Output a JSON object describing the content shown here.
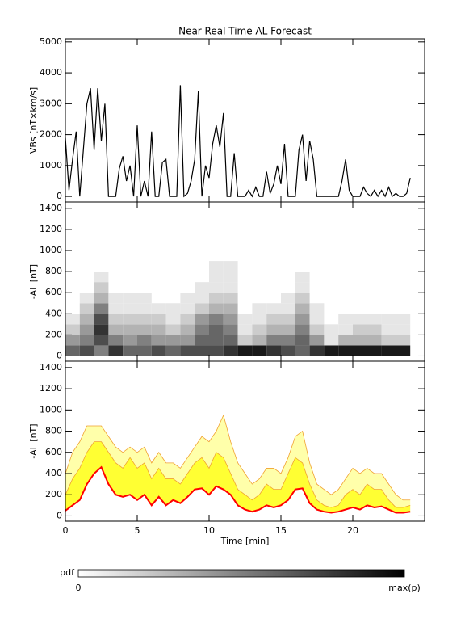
{
  "chart_data": [
    {
      "type": "line",
      "title": "Near Real Time AL Forecast",
      "ylabel": "VBs [nT×km/s]",
      "color": "#000000",
      "x": [
        0,
        0.25,
        0.5,
        0.75,
        1,
        1.25,
        1.5,
        1.75,
        2,
        2.25,
        2.5,
        2.75,
        3,
        3.25,
        3.5,
        3.75,
        4,
        4.25,
        4.5,
        4.75,
        5,
        5.25,
        5.5,
        5.75,
        6,
        6.25,
        6.5,
        6.75,
        7,
        7.25,
        7.5,
        7.75,
        8,
        8.25,
        8.5,
        8.75,
        9,
        9.25,
        9.5,
        9.75,
        10,
        10.25,
        10.5,
        10.75,
        11,
        11.25,
        11.5,
        11.75,
        12,
        12.25,
        12.5,
        12.75,
        13,
        13.25,
        13.5,
        13.75,
        14,
        14.25,
        14.5,
        14.75,
        15,
        15.25,
        15.5,
        15.75,
        16,
        16.25,
        16.5,
        16.75,
        17,
        17.25,
        17.5,
        17.75,
        18,
        18.25,
        18.5,
        18.75,
        19,
        19.25,
        19.5,
        19.75,
        20,
        20.25,
        20.5,
        20.75,
        21,
        21.25,
        21.5,
        21.75,
        22,
        22.25,
        22.5,
        22.75,
        23,
        23.25,
        23.5,
        23.75,
        24
      ],
      "values": [
        1900,
        200,
        1200,
        2100,
        0,
        1500,
        3000,
        3500,
        1500,
        3500,
        1800,
        3000,
        0,
        0,
        0,
        900,
        1300,
        500,
        1000,
        0,
        2300,
        0,
        500,
        0,
        2100,
        0,
        0,
        1100,
        1200,
        0,
        0,
        0,
        3600,
        0,
        100,
        500,
        1200,
        3400,
        0,
        1000,
        600,
        1700,
        2300,
        1600,
        2700,
        0,
        0,
        1400,
        0,
        0,
        0,
        200,
        0,
        300,
        0,
        0,
        800,
        100,
        400,
        1000,
        400,
        1700,
        0,
        0,
        0,
        1500,
        2000,
        500,
        1800,
        1200,
        0,
        0,
        0,
        0,
        0,
        0,
        0,
        500,
        1200,
        200,
        0,
        0,
        0,
        300,
        100,
        0,
        200,
        0,
        200,
        0,
        300,
        0,
        100,
        0,
        0,
        100,
        600
      ],
      "xlim": [
        0,
        25
      ],
      "xticks": [
        0,
        5,
        10,
        15,
        20
      ],
      "ylim": [
        -180,
        5100
      ],
      "yticks": [
        0,
        1000,
        2000,
        3000,
        4000,
        5000
      ]
    },
    {
      "type": "heatmap",
      "ylabel": "-AL [nT]",
      "x_bins": [
        0,
        1,
        2,
        3,
        4,
        5,
        6,
        7,
        8,
        9,
        10,
        11,
        12,
        13,
        14,
        15,
        16,
        17,
        18,
        19,
        20,
        21,
        22,
        23,
        24
      ],
      "y_bins": [
        0,
        100,
        200,
        300,
        400,
        500,
        600,
        700,
        800,
        900
      ],
      "values": [
        [
          0.6,
          0.4,
          0.2,
          0.1,
          0,
          0,
          0,
          0,
          0
        ],
        [
          0.7,
          0.5,
          0.4,
          0.3,
          0.2,
          0.1,
          0,
          0,
          0
        ],
        [
          0.5,
          0.7,
          0.8,
          0.7,
          0.5,
          0.3,
          0.2,
          0.1,
          0
        ],
        [
          0.8,
          0.5,
          0.3,
          0.2,
          0.1,
          0.1,
          0,
          0,
          0
        ],
        [
          0.6,
          0.4,
          0.3,
          0.2,
          0.1,
          0.1,
          0,
          0,
          0
        ],
        [
          0.6,
          0.5,
          0.3,
          0.2,
          0.1,
          0.1,
          0,
          0,
          0
        ],
        [
          0.7,
          0.4,
          0.3,
          0.2,
          0.1,
          0,
          0,
          0,
          0
        ],
        [
          0.6,
          0.4,
          0.2,
          0.1,
          0.1,
          0,
          0,
          0,
          0
        ],
        [
          0.7,
          0.4,
          0.3,
          0.2,
          0.1,
          0.1,
          0,
          0,
          0
        ],
        [
          0.7,
          0.6,
          0.5,
          0.4,
          0.2,
          0.1,
          0.1,
          0,
          0
        ],
        [
          0.7,
          0.6,
          0.6,
          0.5,
          0.3,
          0.2,
          0.1,
          0.1,
          0.1
        ],
        [
          0.8,
          0.6,
          0.5,
          0.4,
          0.3,
          0.2,
          0.1,
          0.1,
          0.1
        ],
        [
          0.9,
          0.2,
          0.1,
          0.1,
          0,
          0,
          0,
          0,
          0
        ],
        [
          0.9,
          0.3,
          0.2,
          0.1,
          0.1,
          0,
          0,
          0,
          0
        ],
        [
          0.8,
          0.5,
          0.3,
          0.2,
          0.1,
          0,
          0,
          0,
          0
        ],
        [
          0.7,
          0.5,
          0.3,
          0.2,
          0.1,
          0.1,
          0,
          0,
          0
        ],
        [
          0.6,
          0.6,
          0.5,
          0.4,
          0.3,
          0.2,
          0.1,
          0.1,
          0
        ],
        [
          0.8,
          0.4,
          0.2,
          0.1,
          0.1,
          0,
          0,
          0,
          0
        ],
        [
          0.9,
          0.1,
          0.1,
          0,
          0,
          0,
          0,
          0,
          0
        ],
        [
          0.9,
          0.3,
          0.1,
          0.1,
          0,
          0,
          0,
          0,
          0
        ],
        [
          0.9,
          0.3,
          0.2,
          0.1,
          0,
          0,
          0,
          0,
          0
        ],
        [
          0.9,
          0.3,
          0.2,
          0.1,
          0,
          0,
          0,
          0,
          0
        ],
        [
          0.9,
          0.2,
          0.1,
          0.1,
          0,
          0,
          0,
          0,
          0
        ],
        [
          0.9,
          0.2,
          0.1,
          0.1,
          0,
          0,
          0,
          0,
          0
        ]
      ],
      "xlim": [
        0,
        25
      ],
      "xticks": [
        0,
        5,
        10,
        15,
        20
      ],
      "ylim": [
        -50,
        1460
      ],
      "yticks": [
        0,
        200,
        400,
        600,
        800,
        1000,
        1200,
        1400
      ]
    },
    {
      "type": "band",
      "ylabel": "-AL [nT]",
      "xlabel": "Time [min]",
      "color": "#ff0000",
      "band_color": "#ffff33",
      "outer_color": "#ffffaa",
      "edge_color": "#f0a030",
      "x": [
        0,
        0.5,
        1,
        1.5,
        2,
        2.5,
        3,
        3.5,
        4,
        4.5,
        5,
        5.5,
        6,
        6.5,
        7,
        7.5,
        8,
        8.5,
        9,
        9.5,
        10,
        10.5,
        11,
        11.5,
        12,
        12.5,
        13,
        13.5,
        14,
        14.5,
        15,
        15.5,
        16,
        16.5,
        17,
        17.5,
        18,
        18.5,
        19,
        19.5,
        20,
        20.5,
        21,
        21.5,
        22,
        22.5,
        23,
        23.5,
        24
      ],
      "values": [
        50,
        100,
        150,
        300,
        400,
        460,
        300,
        200,
        180,
        200,
        150,
        200,
        100,
        180,
        100,
        150,
        120,
        180,
        250,
        260,
        200,
        280,
        250,
        200,
        100,
        60,
        40,
        60,
        100,
        80,
        100,
        150,
        250,
        260,
        120,
        60,
        40,
        30,
        40,
        60,
        80,
        60,
        100,
        80,
        90,
        60,
        30,
        30,
        40
      ],
      "band_upper": [
        200,
        350,
        450,
        600,
        700,
        700,
        600,
        500,
        450,
        550,
        450,
        500,
        350,
        450,
        350,
        350,
        300,
        400,
        500,
        550,
        450,
        600,
        550,
        400,
        250,
        200,
        150,
        200,
        300,
        250,
        250,
        400,
        550,
        500,
        300,
        150,
        100,
        80,
        100,
        200,
        250,
        200,
        300,
        250,
        250,
        150,
        80,
        80,
        100
      ],
      "outer_upper": [
        400,
        600,
        700,
        850,
        850,
        850,
        750,
        650,
        600,
        650,
        600,
        650,
        500,
        600,
        500,
        500,
        450,
        550,
        650,
        750,
        700,
        800,
        950,
        700,
        500,
        400,
        300,
        350,
        450,
        450,
        400,
        550,
        750,
        800,
        500,
        300,
        250,
        200,
        250,
        350,
        450,
        400,
        450,
        400,
        400,
        300,
        200,
        150,
        150
      ],
      "xlim": [
        0,
        25
      ],
      "xticks": [
        0,
        5,
        10,
        15,
        20
      ],
      "ylim": [
        -50,
        1460
      ],
      "yticks": [
        0,
        200,
        400,
        600,
        800,
        1000,
        1200,
        1400
      ]
    }
  ],
  "colorbar": {
    "label": "pdf",
    "min_label": "0",
    "max_label": "max(p)"
  }
}
